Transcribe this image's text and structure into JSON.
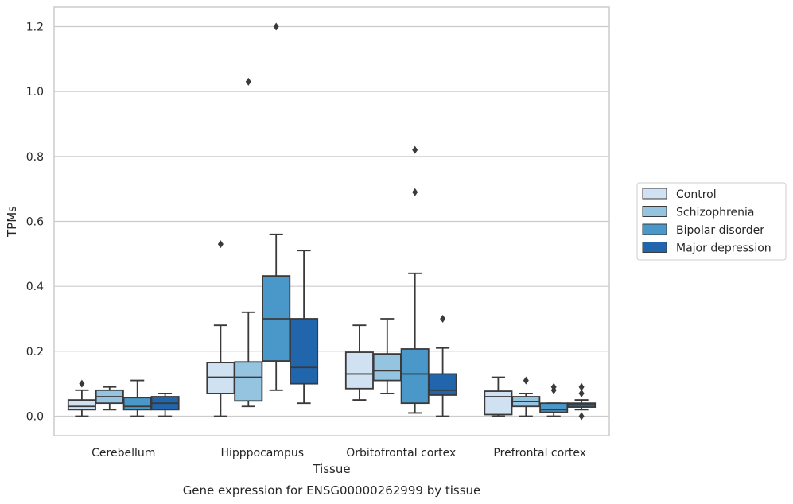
{
  "caption": "Gene expression for ENSG00000262999 by tissue",
  "chart_data": {
    "type": "box",
    "title": "",
    "xlabel": "Tissue",
    "ylabel": "TPMs",
    "ylim": [
      -0.06,
      1.26
    ],
    "yticks": [
      0.0,
      0.2,
      0.4,
      0.6,
      0.8,
      1.0,
      1.2
    ],
    "ytick_labels": [
      "0.0",
      "0.2",
      "0.4",
      "0.6",
      "0.8",
      "1.0",
      "1.2"
    ],
    "grid": "horizontal",
    "legend_position": "right-center",
    "categories": [
      "Cerebellum",
      "Hipppocampus",
      "Orbitofrontal cortex",
      "Prefrontal cortex"
    ],
    "series": [
      {
        "name": "Control",
        "color": "#d0e1f2",
        "boxes": [
          {
            "whisker_low": 0.0,
            "q1": 0.02,
            "median": 0.03,
            "q3": 0.05,
            "whisker_high": 0.08,
            "outliers": [
              0.1
            ]
          },
          {
            "whisker_low": 0.0,
            "q1": 0.07,
            "median": 0.12,
            "q3": 0.165,
            "whisker_high": 0.28,
            "outliers": [
              0.53
            ]
          },
          {
            "whisker_low": 0.05,
            "q1": 0.085,
            "median": 0.13,
            "q3": 0.197,
            "whisker_high": 0.28,
            "outliers": []
          },
          {
            "whisker_low": 0.0,
            "q1": 0.005,
            "median": 0.06,
            "q3": 0.077,
            "whisker_high": 0.12,
            "outliers": []
          }
        ]
      },
      {
        "name": "Schizophrenia",
        "color": "#94c4df",
        "boxes": [
          {
            "whisker_low": 0.02,
            "q1": 0.04,
            "median": 0.06,
            "q3": 0.08,
            "whisker_high": 0.09,
            "outliers": []
          },
          {
            "whisker_low": 0.03,
            "q1": 0.047,
            "median": 0.12,
            "q3": 0.167,
            "whisker_high": 0.32,
            "outliers": [
              1.03
            ]
          },
          {
            "whisker_low": 0.07,
            "q1": 0.11,
            "median": 0.14,
            "q3": 0.192,
            "whisker_high": 0.3,
            "outliers": []
          },
          {
            "whisker_low": 0.0,
            "q1": 0.03,
            "median": 0.045,
            "q3": 0.06,
            "whisker_high": 0.07,
            "outliers": [
              0.11
            ]
          }
        ]
      },
      {
        "name": "Bipolar disorder",
        "color": "#4a98c9",
        "boxes": [
          {
            "whisker_low": 0.0,
            "q1": 0.02,
            "median": 0.03,
            "q3": 0.057,
            "whisker_high": 0.11,
            "outliers": []
          },
          {
            "whisker_low": 0.08,
            "q1": 0.17,
            "median": 0.3,
            "q3": 0.432,
            "whisker_high": 0.56,
            "outliers": [
              1.2
            ]
          },
          {
            "whisker_low": 0.01,
            "q1": 0.04,
            "median": 0.13,
            "q3": 0.207,
            "whisker_high": 0.44,
            "outliers": [
              0.69,
              0.82
            ]
          },
          {
            "whisker_low": 0.0,
            "q1": 0.012,
            "median": 0.02,
            "q3": 0.04,
            "whisker_high": 0.04,
            "outliers": [
              0.08,
              0.09
            ]
          }
        ]
      },
      {
        "name": "Major depression",
        "color": "#2166ac",
        "boxes": [
          {
            "whisker_low": 0.0,
            "q1": 0.02,
            "median": 0.04,
            "q3": 0.06,
            "whisker_high": 0.07,
            "outliers": []
          },
          {
            "whisker_low": 0.04,
            "q1": 0.1,
            "median": 0.15,
            "q3": 0.3,
            "whisker_high": 0.51,
            "outliers": []
          },
          {
            "whisker_low": 0.0,
            "q1": 0.065,
            "median": 0.08,
            "q3": 0.13,
            "whisker_high": 0.21,
            "outliers": [
              0.3
            ]
          },
          {
            "whisker_low": 0.02,
            "q1": 0.028,
            "median": 0.035,
            "q3": 0.04,
            "whisker_high": 0.05,
            "outliers": [
              0.0,
              0.07,
              0.09
            ]
          }
        ]
      }
    ]
  }
}
